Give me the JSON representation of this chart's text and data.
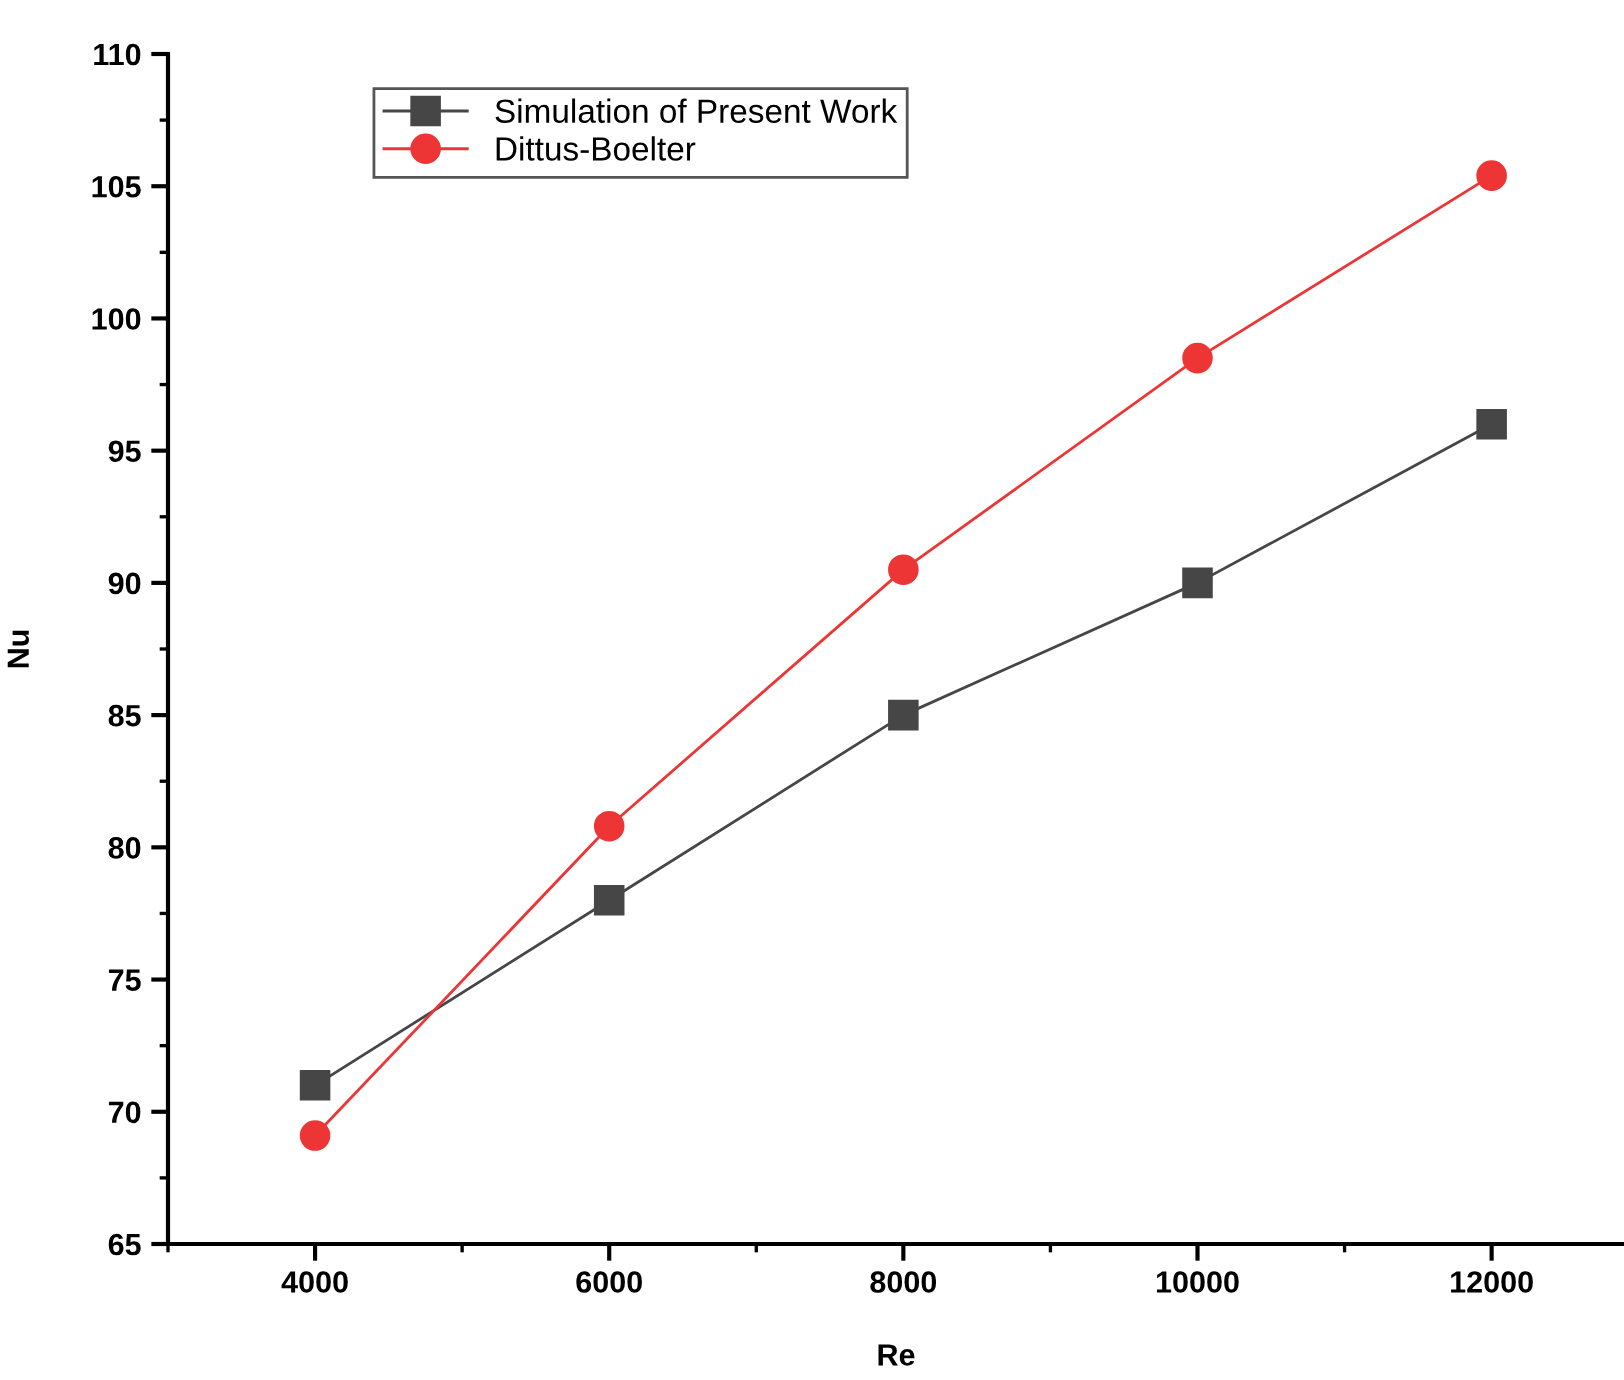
{
  "chart_data": {
    "type": "line",
    "xlabel": "Re",
    "ylabel": "Nu",
    "x": [
      4000,
      6000,
      8000,
      10000,
      12000
    ],
    "series": [
      {
        "name": "Simulation of Present Work",
        "color": "#464646",
        "marker": "square",
        "values": [
          71,
          78,
          85,
          90,
          96
        ]
      },
      {
        "name": "Dittus-Boelter",
        "color": "#ee3535",
        "marker": "circle",
        "values": [
          69.1,
          80.8,
          90.5,
          98.5,
          105.4
        ]
      }
    ],
    "xlim": [
      3000,
      12900
    ],
    "ylim": [
      65,
      110
    ],
    "xticks": [
      {
        "value": 3000,
        "label": null
      },
      4000,
      {
        "value": 5000,
        "label": null
      },
      6000,
      {
        "value": 7000,
        "label": null
      },
      8000,
      {
        "value": 9000,
        "label": null
      },
      10000,
      {
        "value": 11000,
        "label": null
      },
      12000
    ],
    "yticks": [
      65,
      {
        "value": 67.5,
        "label": null
      },
      70,
      {
        "value": 72.5,
        "label": null
      },
      75,
      {
        "value": 77.5,
        "label": null
      },
      80,
      {
        "value": 82.5,
        "label": null
      },
      85,
      {
        "value": 87.5,
        "label": null
      },
      90,
      {
        "value": 92.5,
        "label": null
      },
      95,
      {
        "value": 97.5,
        "label": null
      },
      100,
      {
        "value": 102.5,
        "label": null
      },
      105,
      {
        "value": 107.5,
        "label": null
      },
      110
    ],
    "grid": false,
    "legend": "top left",
    "line_style": "solid"
  }
}
